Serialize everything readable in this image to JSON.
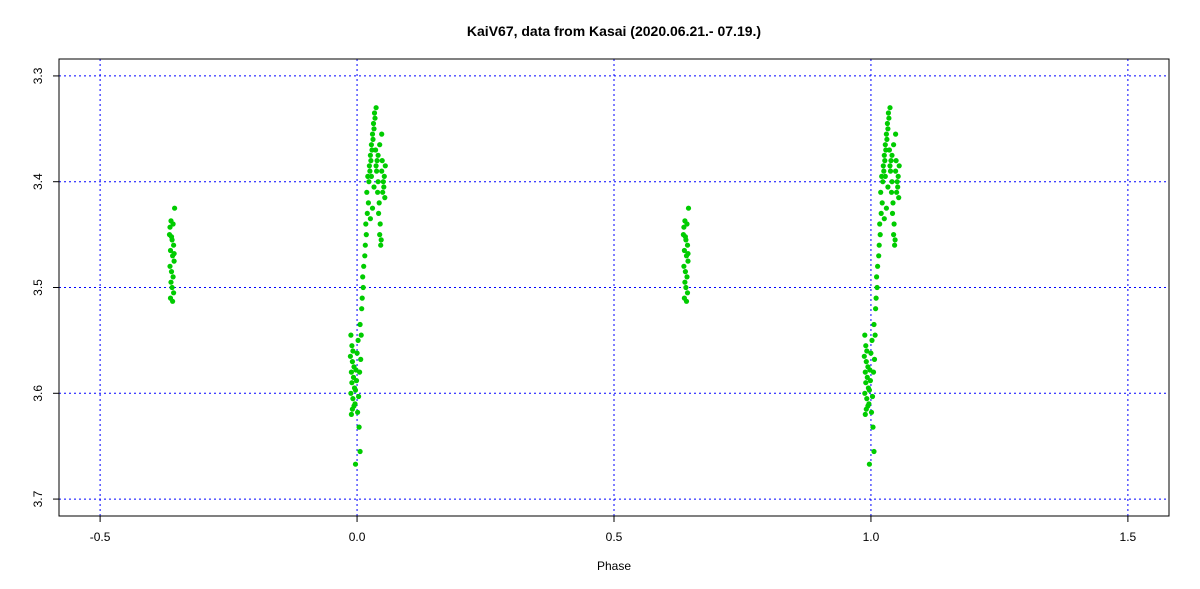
{
  "chart_data": {
    "type": "scatter",
    "title": "KaiV67, data from Kasai (2020.06.21.- 07.19.)",
    "xlabel": "Phase",
    "ylabel": "",
    "xlim": [
      -0.58,
      1.58
    ],
    "ylim": [
      3.716,
      3.284
    ],
    "y_inverted": true,
    "grid": true,
    "grid_color": "#0000ff",
    "point_color": "#00cc00",
    "x_ticks": [
      {
        "value": -0.5,
        "label": "-0.5"
      },
      {
        "value": 0.0,
        "label": "0.0"
      },
      {
        "value": 0.5,
        "label": "0.5"
      },
      {
        "value": 1.0,
        "label": "1.0"
      },
      {
        "value": 1.5,
        "label": "1.5"
      }
    ],
    "y_ticks": [
      {
        "value": 3.3,
        "label": "3.3"
      },
      {
        "value": 3.4,
        "label": "3.4"
      },
      {
        "value": 3.5,
        "label": "3.5"
      },
      {
        "value": 3.6,
        "label": "3.6"
      },
      {
        "value": 3.7,
        "label": "3.7"
      }
    ],
    "series": [
      {
        "values_desc": "phase / magnitude pairs",
        "points": [
          [
            -0.362,
            3.437
          ],
          [
            -0.358,
            3.44
          ],
          [
            -0.355,
            3.425
          ],
          [
            -0.365,
            3.45
          ],
          [
            -0.36,
            3.455
          ],
          [
            -0.357,
            3.46
          ],
          [
            -0.363,
            3.465
          ],
          [
            -0.359,
            3.47
          ],
          [
            -0.356,
            3.475
          ],
          [
            -0.364,
            3.48
          ],
          [
            -0.361,
            3.485
          ],
          [
            -0.358,
            3.49
          ],
          [
            -0.362,
            3.495
          ],
          [
            -0.36,
            3.5
          ],
          [
            -0.357,
            3.505
          ],
          [
            -0.363,
            3.51
          ],
          [
            -0.359,
            3.513
          ],
          [
            -0.361,
            3.452
          ],
          [
            -0.356,
            3.468
          ],
          [
            -0.364,
            3.443
          ],
          [
            0.638,
            3.437
          ],
          [
            0.642,
            3.44
          ],
          [
            0.645,
            3.425
          ],
          [
            0.635,
            3.45
          ],
          [
            0.64,
            3.455
          ],
          [
            0.643,
            3.46
          ],
          [
            0.637,
            3.465
          ],
          [
            0.641,
            3.47
          ],
          [
            0.644,
            3.475
          ],
          [
            0.636,
            3.48
          ],
          [
            0.639,
            3.485
          ],
          [
            0.642,
            3.49
          ],
          [
            0.638,
            3.495
          ],
          [
            0.64,
            3.5
          ],
          [
            0.643,
            3.505
          ],
          [
            0.637,
            3.51
          ],
          [
            0.641,
            3.513
          ],
          [
            0.639,
            3.452
          ],
          [
            0.644,
            3.468
          ],
          [
            0.636,
            3.443
          ],
          [
            -0.012,
            3.545
          ],
          [
            -0.01,
            3.555
          ],
          [
            -0.008,
            3.56
          ],
          [
            -0.013,
            3.565
          ],
          [
            -0.009,
            3.57
          ],
          [
            -0.006,
            3.575
          ],
          [
            -0.011,
            3.58
          ],
          [
            -0.007,
            3.585
          ],
          [
            -0.01,
            3.59
          ],
          [
            -0.005,
            3.595
          ],
          [
            -0.012,
            3.6
          ],
          [
            -0.008,
            3.605
          ],
          [
            -0.004,
            3.61
          ],
          [
            -0.009,
            3.615
          ],
          [
            -0.011,
            3.62
          ],
          [
            -0.006,
            3.612
          ],
          [
            -0.003,
            3.597
          ],
          [
            -0.002,
            3.578
          ],
          [
            0.0,
            3.562
          ],
          [
            0.002,
            3.55
          ],
          [
            -0.001,
            3.588
          ],
          [
            0.003,
            3.603
          ],
          [
            0.001,
            3.618
          ],
          [
            0.004,
            3.632
          ],
          [
            0.006,
            3.655
          ],
          [
            -0.003,
            3.667
          ],
          [
            0.005,
            3.58
          ],
          [
            0.007,
            3.568
          ],
          [
            0.008,
            3.545
          ],
          [
            0.006,
            3.535
          ],
          [
            0.009,
            3.52
          ],
          [
            0.01,
            3.51
          ],
          [
            0.012,
            3.5
          ],
          [
            0.011,
            3.49
          ],
          [
            0.013,
            3.48
          ],
          [
            0.015,
            3.47
          ],
          [
            0.016,
            3.46
          ],
          [
            0.018,
            3.45
          ],
          [
            0.017,
            3.44
          ],
          [
            0.02,
            3.43
          ],
          [
            0.022,
            3.42
          ],
          [
            0.019,
            3.41
          ],
          [
            0.023,
            3.4
          ],
          [
            0.021,
            3.395
          ],
          [
            0.025,
            3.39
          ],
          [
            0.024,
            3.385
          ],
          [
            0.027,
            3.38
          ],
          [
            0.026,
            3.375
          ],
          [
            0.029,
            3.37
          ],
          [
            0.028,
            3.365
          ],
          [
            0.031,
            3.36
          ],
          [
            0.03,
            3.355
          ],
          [
            0.033,
            3.35
          ],
          [
            0.032,
            3.345
          ],
          [
            0.035,
            3.34
          ],
          [
            0.034,
            3.335
          ],
          [
            0.037,
            3.33
          ],
          [
            0.036,
            3.37
          ],
          [
            0.039,
            3.38
          ],
          [
            0.038,
            3.39
          ],
          [
            0.041,
            3.4
          ],
          [
            0.04,
            3.41
          ],
          [
            0.043,
            3.42
          ],
          [
            0.042,
            3.43
          ],
          [
            0.045,
            3.44
          ],
          [
            0.044,
            3.45
          ],
          [
            0.047,
            3.455
          ],
          [
            0.046,
            3.46
          ],
          [
            0.049,
            3.38
          ],
          [
            0.048,
            3.39
          ],
          [
            0.051,
            3.4
          ],
          [
            0.05,
            3.41
          ],
          [
            0.053,
            3.395
          ],
          [
            0.052,
            3.405
          ],
          [
            0.055,
            3.385
          ],
          [
            0.054,
            3.415
          ],
          [
            0.03,
            3.425
          ],
          [
            0.026,
            3.435
          ],
          [
            0.033,
            3.405
          ],
          [
            0.028,
            3.395
          ],
          [
            0.037,
            3.385
          ],
          [
            0.041,
            3.375
          ],
          [
            0.044,
            3.365
          ],
          [
            0.048,
            3.355
          ],
          [
            0.988,
            3.545
          ],
          [
            0.99,
            3.555
          ],
          [
            0.992,
            3.56
          ],
          [
            0.987,
            3.565
          ],
          [
            0.991,
            3.57
          ],
          [
            0.994,
            3.575
          ],
          [
            0.989,
            3.58
          ],
          [
            0.993,
            3.585
          ],
          [
            0.99,
            3.59
          ],
          [
            0.995,
            3.595
          ],
          [
            0.988,
            3.6
          ],
          [
            0.992,
            3.605
          ],
          [
            0.996,
            3.61
          ],
          [
            0.991,
            3.615
          ],
          [
            0.989,
            3.62
          ],
          [
            0.994,
            3.612
          ],
          [
            0.997,
            3.597
          ],
          [
            0.998,
            3.578
          ],
          [
            1.0,
            3.562
          ],
          [
            1.002,
            3.55
          ],
          [
            0.999,
            3.588
          ],
          [
            1.003,
            3.603
          ],
          [
            1.001,
            3.618
          ],
          [
            1.004,
            3.632
          ],
          [
            1.006,
            3.655
          ],
          [
            0.997,
            3.667
          ],
          [
            1.005,
            3.58
          ],
          [
            1.007,
            3.568
          ],
          [
            1.008,
            3.545
          ],
          [
            1.006,
            3.535
          ],
          [
            1.009,
            3.52
          ],
          [
            1.01,
            3.51
          ],
          [
            1.012,
            3.5
          ],
          [
            1.011,
            3.49
          ],
          [
            1.013,
            3.48
          ],
          [
            1.015,
            3.47
          ],
          [
            1.016,
            3.46
          ],
          [
            1.018,
            3.45
          ],
          [
            1.017,
            3.44
          ],
          [
            1.02,
            3.43
          ],
          [
            1.022,
            3.42
          ],
          [
            1.019,
            3.41
          ],
          [
            1.023,
            3.4
          ],
          [
            1.021,
            3.395
          ],
          [
            1.025,
            3.39
          ],
          [
            1.024,
            3.385
          ],
          [
            1.027,
            3.38
          ],
          [
            1.026,
            3.375
          ],
          [
            1.029,
            3.37
          ],
          [
            1.028,
            3.365
          ],
          [
            1.031,
            3.36
          ],
          [
            1.03,
            3.355
          ],
          [
            1.033,
            3.35
          ],
          [
            1.032,
            3.345
          ],
          [
            1.035,
            3.34
          ],
          [
            1.034,
            3.335
          ],
          [
            1.037,
            3.33
          ],
          [
            1.036,
            3.37
          ],
          [
            1.039,
            3.38
          ],
          [
            1.038,
            3.39
          ],
          [
            1.041,
            3.4
          ],
          [
            1.04,
            3.41
          ],
          [
            1.043,
            3.42
          ],
          [
            1.042,
            3.43
          ],
          [
            1.045,
            3.44
          ],
          [
            1.044,
            3.45
          ],
          [
            1.047,
            3.455
          ],
          [
            1.046,
            3.46
          ],
          [
            1.049,
            3.38
          ],
          [
            1.048,
            3.39
          ],
          [
            1.051,
            3.4
          ],
          [
            1.05,
            3.41
          ],
          [
            1.053,
            3.395
          ],
          [
            1.052,
            3.405
          ],
          [
            1.055,
            3.385
          ],
          [
            1.054,
            3.415
          ],
          [
            1.03,
            3.425
          ],
          [
            1.026,
            3.435
          ],
          [
            1.033,
            3.405
          ],
          [
            1.028,
            3.395
          ],
          [
            1.037,
            3.385
          ],
          [
            1.041,
            3.375
          ],
          [
            1.044,
            3.365
          ],
          [
            1.048,
            3.355
          ]
        ]
      }
    ]
  }
}
